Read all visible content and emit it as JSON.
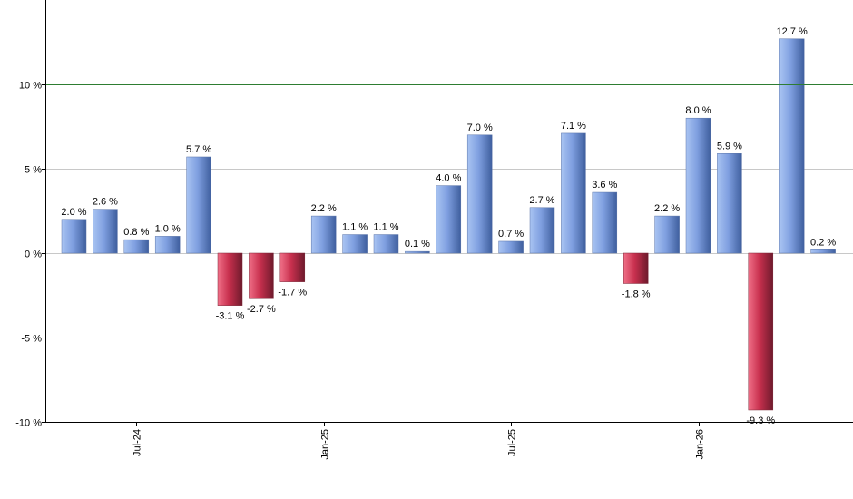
{
  "chart_data": {
    "type": "bar",
    "values": [
      2.0,
      2.6,
      0.8,
      1.0,
      5.7,
      -3.1,
      -2.7,
      -1.7,
      2.2,
      1.1,
      1.1,
      0.1,
      4.0,
      7.0,
      0.7,
      2.7,
      7.1,
      3.6,
      -1.8,
      2.2,
      8.0,
      5.9,
      -9.3,
      12.7,
      0.2
    ],
    "data_labels": [
      "2.0 %",
      "2.6 %",
      "0.8 %",
      "1.0 %",
      "5.7 %",
      "-3.1 %",
      "-2.7 %",
      "-1.7 %",
      "2.2 %",
      "1.1 %",
      "1.1 %",
      "0.1 %",
      "4.0 %",
      "7.0 %",
      "0.7 %",
      "2.7 %",
      "7.1 %",
      "3.6 %",
      "-1.8 %",
      "2.2 %",
      "8.0 %",
      "5.9 %",
      "-9.3 %",
      "12.7 %",
      "0.2 %"
    ],
    "x_ticks": [
      {
        "index": 2,
        "label": "Jul-24"
      },
      {
        "index": 8,
        "label": "Jan-25"
      },
      {
        "index": 14,
        "label": "Jul-25"
      },
      {
        "index": 20,
        "label": "Jan-26"
      }
    ],
    "y_ticks": [
      {
        "value": 10,
        "label": "10 %"
      },
      {
        "value": 5,
        "label": "5 %"
      },
      {
        "value": 0,
        "label": "0 %"
      },
      {
        "value": -5,
        "label": "-5 %"
      },
      {
        "value": -10,
        "label": "-10 %"
      }
    ],
    "ylim": [
      -10,
      15
    ],
    "reference_line": {
      "value": 10,
      "color": "#2e7d32"
    },
    "colors": {
      "positive_light": "#a9c4f2",
      "positive_dark": "#3f5f9e",
      "negative_light": "#f07088",
      "negative_dark": "#6e1a2c",
      "grid": "#c8c8c8"
    },
    "grid": true,
    "title": "",
    "xlabel": "",
    "ylabel": ""
  }
}
